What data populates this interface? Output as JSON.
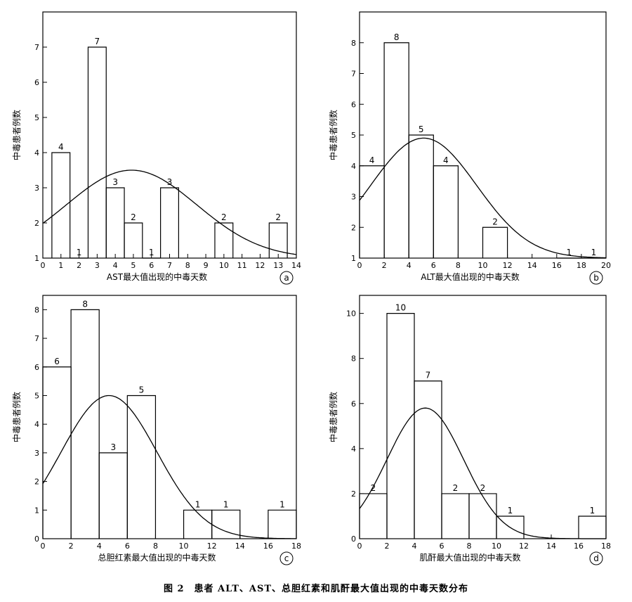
{
  "figure": {
    "caption": "图 2　患者 ALT、AST、总胆红素和肌酐最大值出现的中毒天数分布"
  },
  "chart_data": [
    {
      "type": "bar",
      "panel_label": "a",
      "xlabel": "AST最大值出现的中毒天数",
      "ylabel": "中毒患者例数",
      "xlim": [
        0,
        14
      ],
      "ylim": [
        1,
        8
      ],
      "xticks": [
        0,
        1,
        2,
        3,
        4,
        5,
        6,
        7,
        8,
        9,
        10,
        11,
        12,
        13,
        14
      ],
      "yticks": [
        1,
        2,
        3,
        4,
        5,
        6,
        7
      ],
      "bins": [
        {
          "x0": 0.5,
          "x1": 1.5,
          "count": 4
        },
        {
          "x0": 1.5,
          "x1": 2.5,
          "count": 1
        },
        {
          "x0": 2.5,
          "x1": 3.5,
          "count": 7
        },
        {
          "x0": 3.5,
          "x1": 4.5,
          "count": 3
        },
        {
          "x0": 4.5,
          "x1": 5.5,
          "count": 2
        },
        {
          "x0": 5.5,
          "x1": 6.5,
          "count": 1
        },
        {
          "x0": 6.5,
          "x1": 7.5,
          "count": 3
        },
        {
          "x0": 9.5,
          "x1": 10.5,
          "count": 2
        },
        {
          "x0": 12.5,
          "x1": 13.5,
          "count": 2
        }
      ],
      "curve": {
        "mean": 4.9,
        "sd": 3.6,
        "peak": 3.5,
        "base": 1
      }
    },
    {
      "type": "bar",
      "panel_label": "b",
      "xlabel": "ALT最大值出现的中毒天数",
      "ylabel": "中毒患者例数",
      "xlim": [
        0,
        20
      ],
      "ylim": [
        1,
        9
      ],
      "xticks": [
        0,
        2,
        4,
        6,
        8,
        10,
        12,
        14,
        16,
        18,
        20
      ],
      "yticks": [
        1,
        2,
        3,
        4,
        5,
        6,
        7,
        8
      ],
      "bins": [
        {
          "x0": 0,
          "x1": 2,
          "count": 4
        },
        {
          "x0": 2,
          "x1": 4,
          "count": 8
        },
        {
          "x0": 4,
          "x1": 6,
          "count": 5
        },
        {
          "x0": 6,
          "x1": 8,
          "count": 4
        },
        {
          "x0": 10,
          "x1": 12,
          "count": 2
        },
        {
          "x0": 16,
          "x1": 18,
          "count": 1
        },
        {
          "x0": 18,
          "x1": 20,
          "count": 1
        }
      ],
      "curve": {
        "mean": 5.2,
        "sd": 4.3,
        "peak": 4.9,
        "base": 1
      }
    },
    {
      "type": "bar",
      "panel_label": "c",
      "xlabel": "总胆红素最大值出现的中毒天数",
      "ylabel": "中毒患者例数",
      "xlim": [
        0,
        18
      ],
      "ylim": [
        0,
        8.5
      ],
      "xticks": [
        0,
        2,
        4,
        6,
        8,
        10,
        12,
        14,
        16,
        18
      ],
      "yticks": [
        0,
        1,
        2,
        3,
        4,
        5,
        6,
        7,
        8
      ],
      "bins": [
        {
          "x0": 0,
          "x1": 2,
          "count": 6
        },
        {
          "x0": 2,
          "x1": 4,
          "count": 8
        },
        {
          "x0": 4,
          "x1": 6,
          "count": 3
        },
        {
          "x0": 6,
          "x1": 8,
          "count": 5
        },
        {
          "x0": 10,
          "x1": 12,
          "count": 1
        },
        {
          "x0": 12,
          "x1": 14,
          "count": 1
        },
        {
          "x0": 16,
          "x1": 18,
          "count": 1
        }
      ],
      "curve": {
        "mean": 4.7,
        "sd": 3.4,
        "peak": 5.0,
        "base": 0
      }
    },
    {
      "type": "bar",
      "panel_label": "d",
      "xlabel": "肌酐最大值出现的中毒天数",
      "ylabel": "中毒患者例数",
      "xlim": [
        0,
        18
      ],
      "ylim": [
        0,
        10.8
      ],
      "xticks": [
        0,
        2,
        4,
        6,
        8,
        10,
        12,
        14,
        16,
        18
      ],
      "yticks": [
        0,
        2,
        4,
        6,
        8,
        10
      ],
      "bins": [
        {
          "x0": 0,
          "x1": 2,
          "count": 2
        },
        {
          "x0": 2,
          "x1": 4,
          "count": 10
        },
        {
          "x0": 4,
          "x1": 6,
          "count": 7
        },
        {
          "x0": 6,
          "x1": 8,
          "count": 2
        },
        {
          "x0": 8,
          "x1": 10,
          "count": 2
        },
        {
          "x0": 10,
          "x1": 12,
          "count": 1
        },
        {
          "x0": 16,
          "x1": 18,
          "count": 1
        }
      ],
      "curve": {
        "mean": 4.8,
        "sd": 2.8,
        "peak": 5.8,
        "base": 0
      }
    }
  ]
}
